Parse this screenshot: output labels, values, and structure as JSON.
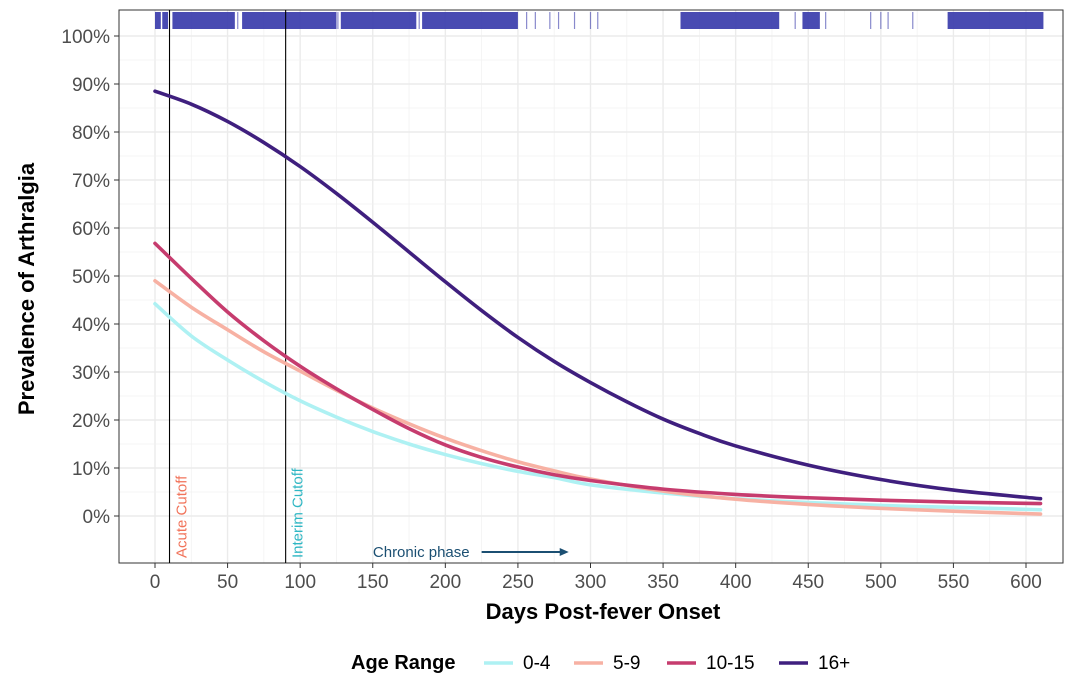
{
  "chart_data": {
    "type": "line",
    "xlabel": "Days Post-fever Onset",
    "ylabel": "Prevalence of Arthralgia",
    "xlim": [
      -25,
      635
    ],
    "ylim": [
      -10,
      105
    ],
    "x_ticks": [
      0,
      50,
      100,
      150,
      200,
      250,
      300,
      350,
      400,
      450,
      500,
      550,
      600
    ],
    "x_tick_labels": [
      "0",
      "50",
      "100",
      "150",
      "200",
      "250",
      "300",
      "350",
      "400",
      "450",
      "500",
      "550",
      "600"
    ],
    "y_ticks": [
      0,
      10,
      20,
      30,
      40,
      50,
      60,
      70,
      80,
      90,
      100
    ],
    "y_tick_labels": [
      "0%",
      "10%",
      "20%",
      "30%",
      "40%",
      "50%",
      "60%",
      "70%",
      "80%",
      "90%",
      "100%"
    ],
    "grid": true,
    "legend": {
      "title": "Age Range",
      "position": "bottom",
      "entries": [
        "0-4",
        "5-9",
        "10-15",
        "16+"
      ]
    },
    "series": [
      {
        "name": "0-4",
        "color": "#aef1f3",
        "x": [
          0,
          25,
          50,
          75,
          100,
          125,
          150,
          175,
          200,
          225,
          250,
          275,
          300,
          350,
          400,
          450,
          500,
          550,
          610
        ],
        "values": [
          44.2,
          37.5,
          32.5,
          28,
          24,
          20.6,
          17.6,
          15,
          12.8,
          10.9,
          9.3,
          8,
          6.5,
          4.8,
          3.6,
          2.8,
          2.2,
          1.8,
          1.3
        ]
      },
      {
        "name": "5-9",
        "color": "#f7b1a3",
        "x": [
          0,
          25,
          50,
          75,
          100,
          125,
          150,
          175,
          200,
          225,
          250,
          275,
          300,
          350,
          400,
          450,
          500,
          550,
          610
        ],
        "values": [
          49,
          43.5,
          38.8,
          34.2,
          30.2,
          26.2,
          22.5,
          19.2,
          16.2,
          13.6,
          11.3,
          9.4,
          7.7,
          5.2,
          3.5,
          2.4,
          1.6,
          1.0,
          0.4
        ]
      },
      {
        "name": "10-15",
        "color": "#c63c6e",
        "x": [
          0,
          25,
          50,
          75,
          100,
          125,
          150,
          175,
          200,
          225,
          250,
          275,
          300,
          350,
          400,
          450,
          500,
          550,
          610
        ],
        "values": [
          56.8,
          49.5,
          42.5,
          36.5,
          31.2,
          26.5,
          22.2,
          18.2,
          14.8,
          12.2,
          10.2,
          8.6,
          7.4,
          5.6,
          4.5,
          3.8,
          3.3,
          2.9,
          2.6
        ]
      },
      {
        "name": "16+",
        "color": "#3f1f7e",
        "x": [
          0,
          25,
          50,
          75,
          100,
          125,
          150,
          175,
          200,
          225,
          250,
          275,
          300,
          325,
          350,
          375,
          400,
          450,
          500,
          550,
          610
        ],
        "values": [
          88.5,
          85.8,
          82.2,
          77.8,
          72.8,
          67.2,
          61.2,
          55,
          48.8,
          42.8,
          37.2,
          32.2,
          27.8,
          23.8,
          20.2,
          17.2,
          14.6,
          10.6,
          7.6,
          5.4,
          3.6
        ]
      }
    ],
    "vertical_lines": [
      {
        "x": 10,
        "label": "Acute Cutoff",
        "label_color": "#f1735a"
      },
      {
        "x": 90,
        "label": "Interim Cutoff",
        "label_color": "#2fb7c4"
      }
    ],
    "annotation": {
      "text": "Chronic phase",
      "color": "#1b4f72",
      "x_start": 225,
      "x_end": 285,
      "y": -7.5
    },
    "rug": {
      "color": "#3a3cab",
      "y": 102,
      "dense_ranges": [
        [
          0,
          4
        ],
        [
          5,
          9
        ],
        [
          12,
          55
        ],
        [
          60,
          125
        ],
        [
          128,
          180
        ],
        [
          184,
          250
        ],
        [
          362,
          430
        ],
        [
          446,
          458
        ],
        [
          546,
          612
        ]
      ],
      "sparse_ticks": [
        57,
        126,
        182,
        256,
        262,
        272,
        278,
        289,
        300,
        305,
        441,
        462,
        493,
        500,
        505,
        522
      ]
    }
  }
}
